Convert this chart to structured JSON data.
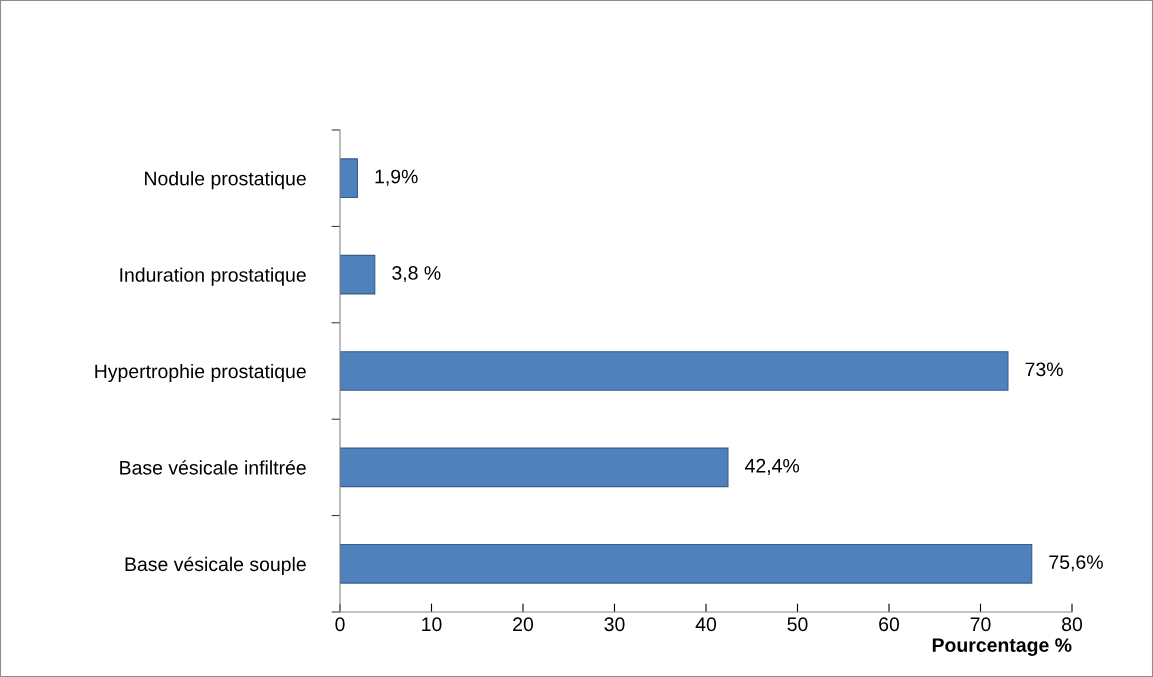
{
  "chart_data": {
    "type": "bar",
    "orientation": "horizontal",
    "xlabel": "Pourcentage %",
    "categories": [
      "Nodule prostatique",
      "Induration prostatique",
      "Hypertrophie prostatique",
      "Base vésicale infiltrée",
      "Base vésicale souple"
    ],
    "values": [
      1.9,
      3.8,
      73,
      42.4,
      75.6
    ],
    "value_labels": [
      "1,9%",
      "3,8 %",
      "73%",
      "42,4%",
      "75,6%"
    ],
    "color": "#4f81bd",
    "xlim": [
      0,
      80
    ],
    "xticks": [
      0,
      10,
      20,
      30,
      40,
      50,
      60,
      70,
      80
    ],
    "grid": false,
    "legend": false
  }
}
